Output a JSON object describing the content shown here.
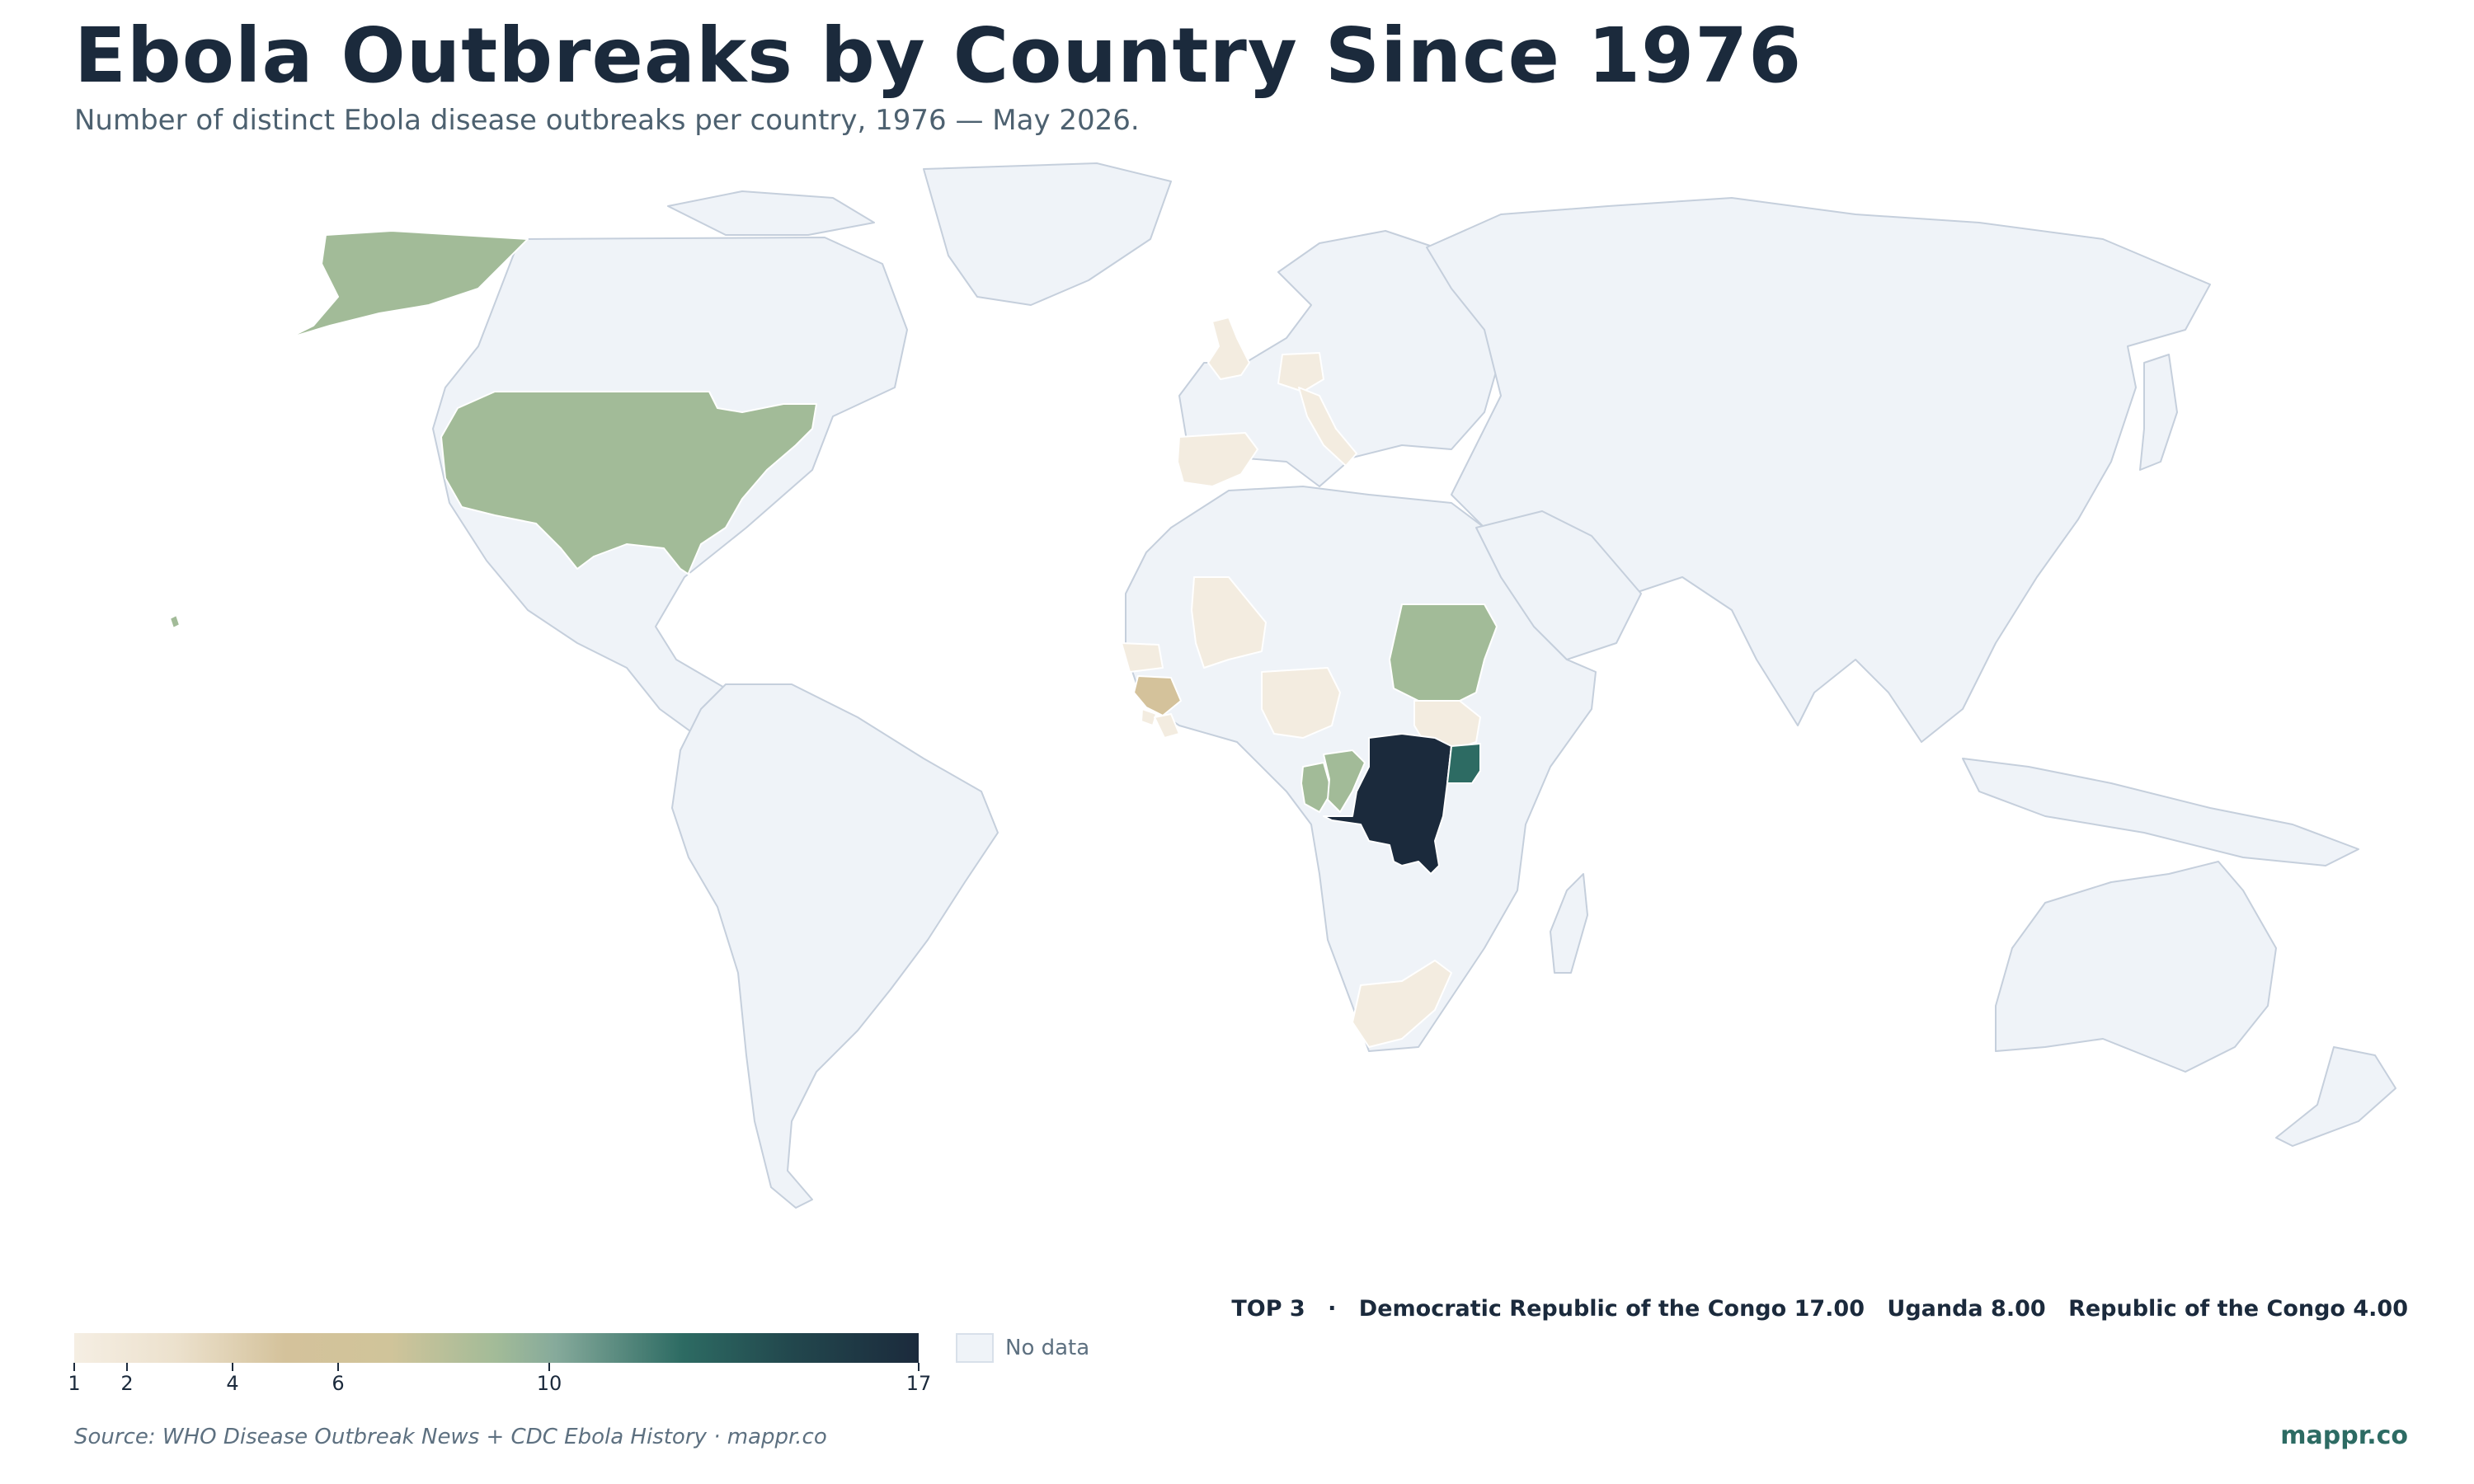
{
  "header": {
    "title": "Ebola Outbreaks by Country Since 1976",
    "subtitle": "Number of distinct Ebola disease outbreaks per country, 1976 — May 2026."
  },
  "map": {
    "no_data_color": "#eff3f8",
    "countries": [
      {
        "name": "Democratic Republic of the Congo",
        "value": 17,
        "color": "#1b2a3c"
      },
      {
        "name": "Uganda",
        "value": 8,
        "color": "#2d6b63"
      },
      {
        "name": "Republic of the Congo",
        "value": 4,
        "color": "#a2bb98"
      },
      {
        "name": "United States",
        "value": 4,
        "color": "#a2bb98"
      },
      {
        "name": "Sudan",
        "value": 4,
        "color": "#a2bb98"
      },
      {
        "name": "Guinea",
        "value": 3,
        "color": "#d4c29b"
      },
      {
        "name": "Gabon",
        "value": 2,
        "color": "#a2bb98"
      },
      {
        "name": "Sierra Leone",
        "value": 1,
        "color": "#f3ece0"
      },
      {
        "name": "Liberia",
        "value": 1,
        "color": "#f3ece0"
      },
      {
        "name": "Mali",
        "value": 1,
        "color": "#f3ece0"
      },
      {
        "name": "Nigeria",
        "value": 1,
        "color": "#f3ece0"
      },
      {
        "name": "Senegal",
        "value": 1,
        "color": "#f3ece0"
      },
      {
        "name": "South Sudan",
        "value": 1,
        "color": "#f3ece0"
      },
      {
        "name": "South Africa",
        "value": 1,
        "color": "#f3ece0"
      },
      {
        "name": "Spain",
        "value": 1,
        "color": "#f3ece0"
      },
      {
        "name": "Italy",
        "value": 1,
        "color": "#f3ece0"
      },
      {
        "name": "United Kingdom",
        "value": 1,
        "color": "#f3ece0"
      },
      {
        "name": "Switzerland",
        "value": 1,
        "color": "#f3ece0"
      }
    ]
  },
  "legend": {
    "min": 1,
    "max": 17,
    "ticks": [
      "1",
      "2",
      "4",
      "6",
      "10",
      "17"
    ],
    "no_data_label": "No data",
    "colors": [
      "#f5eee3",
      "#d4c29b",
      "#a2bb98",
      "#2d6b63",
      "#1b2a3c"
    ]
  },
  "top3": {
    "label": "TOP 3",
    "separator": "·",
    "items": [
      "Democratic Republic of the Congo 17.00",
      "Uganda 8.00",
      "Republic of the Congo 4.00"
    ]
  },
  "footer": {
    "source": "Source: WHO Disease Outbreak News + CDC Ebola History · mappr.co",
    "brand": "mappr.co"
  }
}
